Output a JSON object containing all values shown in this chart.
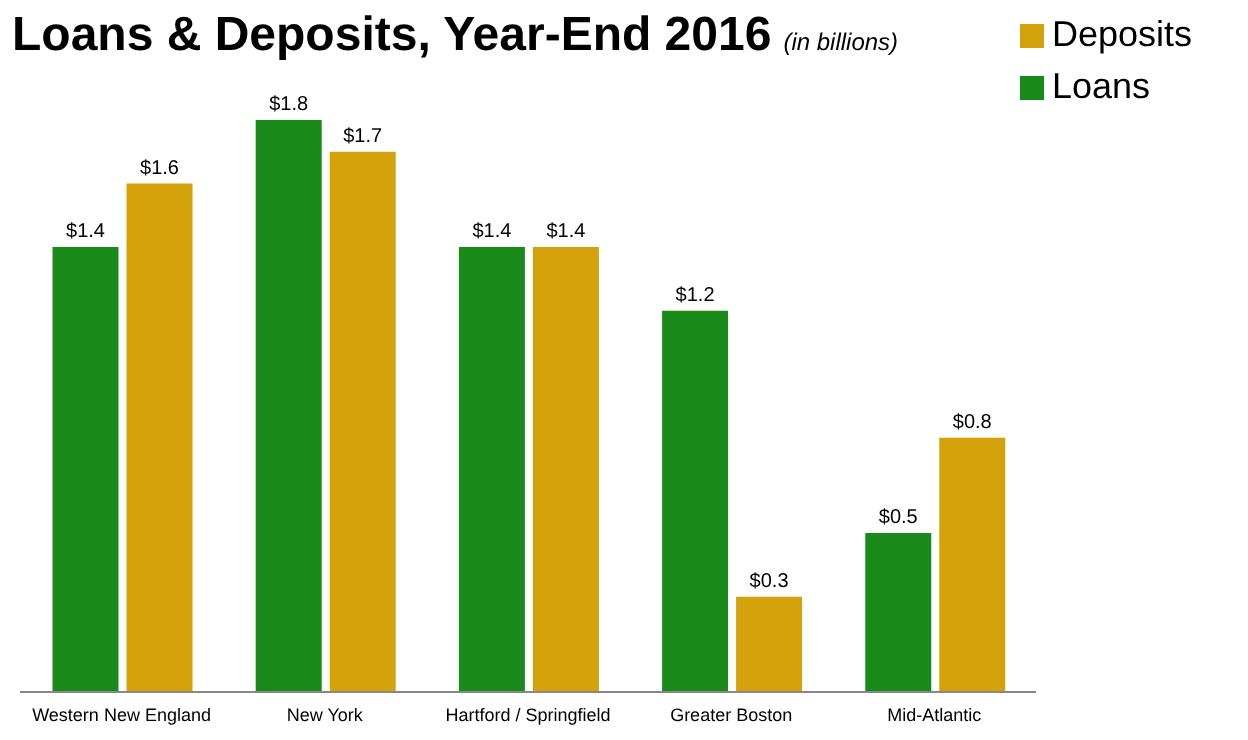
{
  "chart_data": {
    "type": "bar",
    "title": "Loans & Deposits, Year-End 2016",
    "subtitle": "(in billions)",
    "categories": [
      "Western New England",
      "New York",
      "Hartford / Springfield",
      "Greater Boston",
      "Mid-Atlantic"
    ],
    "series": [
      {
        "name": "Loans",
        "color": "#1a8a1a",
        "values": [
          1.4,
          1.8,
          1.4,
          1.2,
          0.5
        ],
        "value_labels": [
          "$1.4",
          "$1.8",
          "$1.4",
          "$1.2",
          "$0.5"
        ]
      },
      {
        "name": "Deposits",
        "color": "#d4a20a",
        "values": [
          1.6,
          1.7,
          1.4,
          0.3,
          0.8
        ],
        "value_labels": [
          "$1.6",
          "$1.7",
          "$1.4",
          "$0.3",
          "$0.8"
        ]
      }
    ],
    "legend": "top right",
    "grid": false,
    "tick_labels": "x"
  }
}
